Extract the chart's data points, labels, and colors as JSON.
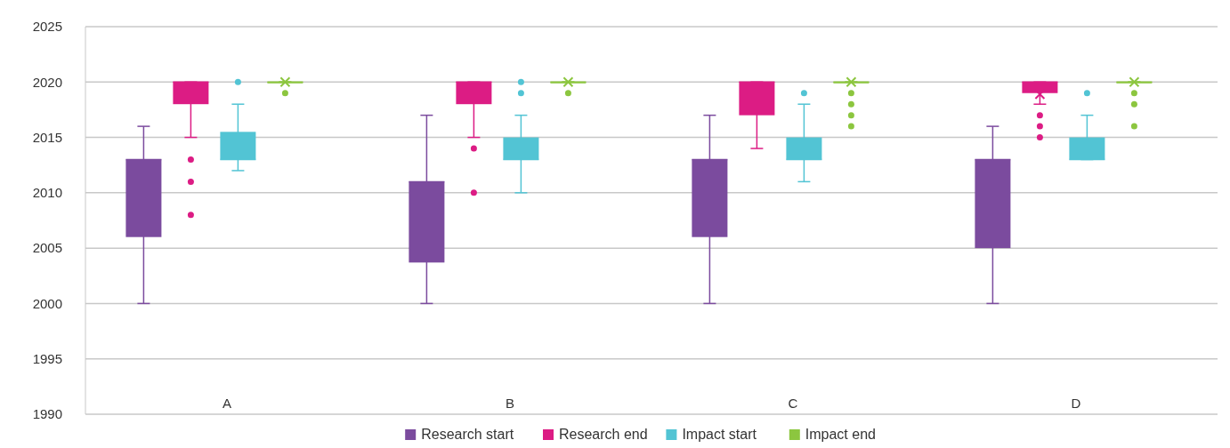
{
  "chart_data": {
    "type": "box",
    "categories": [
      "A",
      "B",
      "C",
      "D"
    ],
    "ylim": [
      1990,
      2025
    ],
    "yticks": [
      1990,
      1995,
      2000,
      2005,
      2010,
      2015,
      2020,
      2025
    ],
    "grid": "y",
    "legend": "bottom",
    "series": [
      {
        "name": "Research start",
        "color": "#7b4b9e",
        "boxes": [
          {
            "low": 2000,
            "q1": 2006,
            "median": 2013,
            "q3": 2013,
            "high": 2016
          },
          {
            "low": 2000,
            "q1": 2003.7,
            "median": 2011,
            "q3": 2011,
            "high": 2017
          },
          {
            "low": 2000,
            "q1": 2006,
            "median": 2013,
            "q3": 2013,
            "high": 2017
          },
          {
            "low": 2000,
            "q1": 2005,
            "median": 2013,
            "q3": 2013,
            "high": 2016
          }
        ]
      },
      {
        "name": "Research end",
        "color": "#dc1c84",
        "boxes": [
          {
            "low": 2015,
            "q1": 2018,
            "median": 2020,
            "q3": 2020,
            "high": 2020,
            "outliers": [
              2013,
              2011,
              2008
            ]
          },
          {
            "low": 2015,
            "q1": 2018,
            "median": 2020,
            "q3": 2020,
            "high": 2020,
            "outliers": [
              2014,
              2010
            ]
          },
          {
            "low": 2014,
            "q1": 2017,
            "median": 2020,
            "q3": 2020,
            "high": 2020
          },
          {
            "low": 2018,
            "q1": 2019,
            "median": 2020,
            "q3": 2020,
            "high": 2020,
            "mean": 2018.9,
            "outliers": [
              2017,
              2016,
              2015
            ]
          }
        ]
      },
      {
        "name": "Impact start",
        "color": "#52c4d4",
        "boxes": [
          {
            "low": 2012,
            "q1": 2013,
            "median": 2013,
            "q3": 2015.5,
            "high": 2018,
            "outliers": [
              2020
            ]
          },
          {
            "low": 2010,
            "q1": 2013,
            "median": 2013,
            "q3": 2015,
            "high": 2017,
            "outliers": [
              2019,
              2020
            ]
          },
          {
            "low": 2011,
            "q1": 2013,
            "median": 2013,
            "q3": 2015,
            "high": 2018,
            "outliers": [
              2019
            ]
          },
          {
            "low": 2013,
            "q1": 2013,
            "median": 2013,
            "q3": 2015,
            "high": 2017,
            "outliers": [
              2019
            ]
          }
        ]
      },
      {
        "name": "Impact end",
        "color": "#8cc63f",
        "boxes": [
          {
            "low": 2020,
            "q1": 2020,
            "median": 2020,
            "q3": 2020,
            "high": 2020,
            "mean": 2020,
            "outliers": [
              2019
            ]
          },
          {
            "low": 2020,
            "q1": 2020,
            "median": 2020,
            "q3": 2020,
            "high": 2020,
            "mean": 2020,
            "outliers": [
              2019
            ]
          },
          {
            "low": 2020,
            "q1": 2020,
            "median": 2020,
            "q3": 2020,
            "high": 2020,
            "mean": 2020,
            "outliers": [
              2019,
              2018,
              2017,
              2016
            ]
          },
          {
            "low": 2020,
            "q1": 2020,
            "median": 2020,
            "q3": 2020,
            "high": 2020,
            "mean": 2020,
            "outliers": [
              2019,
              2018,
              2016
            ]
          }
        ]
      }
    ]
  }
}
